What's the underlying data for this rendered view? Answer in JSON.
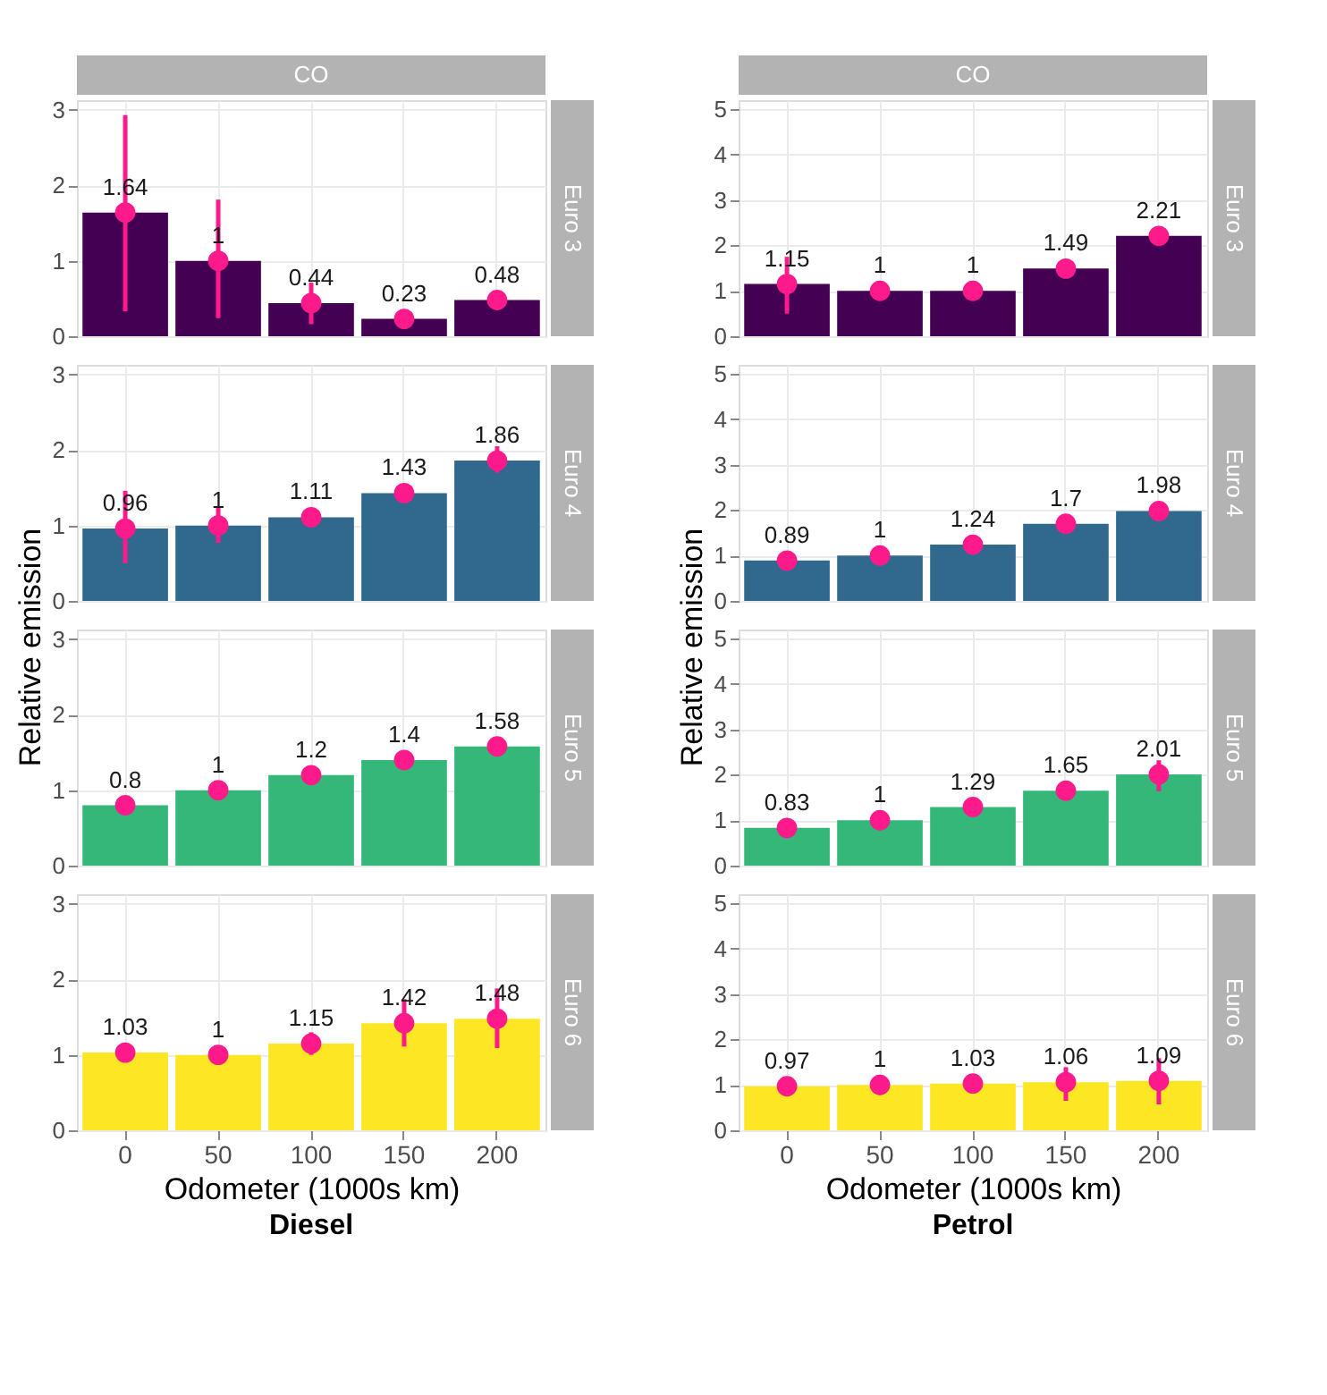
{
  "chart_data": [
    {
      "type": "bar",
      "title": "CO",
      "annotations": [
        "Euro 3"
      ],
      "categories": [
        "0",
        "50",
        "100",
        "150",
        "200"
      ],
      "ylim": [
        0,
        3.13
      ],
      "yticks": [
        0,
        1,
        2,
        3
      ],
      "grid": true,
      "tick_labels": "y",
      "series": [
        {
          "color": "#440154",
          "values": [
            1.64,
            1,
            0.44,
            0.23,
            0.48
          ]
        },
        {
          "type": "scatter",
          "color": "#ff1a8c",
          "values": [
            1.64,
            1,
            0.44,
            0.23,
            0.48
          ],
          "value_labels": [
            "1.64",
            "1",
            "0.44",
            "0.23",
            "0.48"
          ],
          "errors": [
            [
              0.33,
              2.93
            ],
            [
              0.24,
              1.81
            ],
            [
              0.16,
              0.71
            ],
            null,
            null
          ]
        }
      ]
    },
    {
      "type": "bar",
      "ylabel": "Relative emission",
      "annotations": [
        "Euro 4"
      ],
      "categories": [
        "0",
        "50",
        "100",
        "150",
        "200"
      ],
      "ylim": [
        0,
        3.13
      ],
      "yticks": [
        0,
        1,
        2,
        3
      ],
      "grid": true,
      "tick_labels": "y",
      "series": [
        {
          "color": "#31688e",
          "values": [
            0.96,
            1,
            1.11,
            1.43,
            1.86
          ]
        },
        {
          "type": "scatter",
          "color": "#ff1a8c",
          "values": [
            0.96,
            1,
            1.11,
            1.43,
            1.86
          ],
          "value_labels": [
            "0.96",
            "1",
            "1.11",
            "1.43",
            "1.86"
          ],
          "errors": [
            [
              0.5,
              1.46
            ],
            [
              0.77,
              1.24
            ],
            null,
            null,
            [
              1.7,
              2.05
            ]
          ]
        }
      ]
    },
    {
      "type": "bar",
      "annotations": [
        "Euro 5"
      ],
      "categories": [
        "0",
        "50",
        "100",
        "150",
        "200"
      ],
      "ylim": [
        0,
        3.13
      ],
      "yticks": [
        0,
        1,
        2,
        3
      ],
      "grid": true,
      "tick_labels": "y",
      "series": [
        {
          "color": "#35b779",
          "values": [
            0.8,
            1,
            1.2,
            1.4,
            1.58
          ]
        },
        {
          "type": "scatter",
          "color": "#ff1a8c",
          "values": [
            0.8,
            1,
            1.2,
            1.4,
            1.58
          ],
          "value_labels": [
            "0.8",
            "1",
            "1.2",
            "1.4",
            "1.58"
          ]
        }
      ]
    },
    {
      "type": "bar",
      "xlabel": "Odometer (1000s km)",
      "annotations": [
        "Euro 6",
        "Diesel"
      ],
      "categories": [
        "0",
        "50",
        "100",
        "150",
        "200"
      ],
      "ylim": [
        0,
        3.13
      ],
      "yticks": [
        0,
        1,
        2,
        3
      ],
      "grid": true,
      "series": [
        {
          "color": "#fde725",
          "values": [
            1.03,
            1,
            1.15,
            1.42,
            1.48
          ]
        },
        {
          "type": "scatter",
          "color": "#ff1a8c",
          "values": [
            1.03,
            1,
            1.15,
            1.42,
            1.48
          ],
          "value_labels": [
            "1.03",
            "1",
            "1.15",
            "1.42",
            "1.48"
          ],
          "errors": [
            null,
            null,
            [
              1.0,
              1.3
            ],
            [
              1.11,
              1.74
            ],
            [
              1.09,
              1.88
            ]
          ]
        }
      ]
    },
    {
      "type": "bar",
      "title": "CO",
      "annotations": [
        "Euro 3"
      ],
      "categories": [
        "0",
        "50",
        "100",
        "150",
        "200"
      ],
      "ylim": [
        0,
        5.2
      ],
      "yticks": [
        0,
        1,
        2,
        3,
        4,
        5
      ],
      "grid": true,
      "tick_labels": "y",
      "series": [
        {
          "color": "#440154",
          "values": [
            1.15,
            1,
            1,
            1.49,
            2.21
          ]
        },
        {
          "type": "scatter",
          "color": "#ff1a8c",
          "values": [
            1.15,
            1,
            1,
            1.49,
            2.21
          ],
          "value_labels": [
            "1.15",
            "1",
            "1",
            "1.49",
            "2.21"
          ],
          "errors": [
            [
              0.5,
              1.75
            ],
            null,
            null,
            null,
            null
          ]
        }
      ]
    },
    {
      "type": "bar",
      "ylabel": "Relative emission",
      "annotations": [
        "Euro 4"
      ],
      "categories": [
        "0",
        "50",
        "100",
        "150",
        "200"
      ],
      "ylim": [
        0,
        5.2
      ],
      "yticks": [
        0,
        1,
        2,
        3,
        4,
        5
      ],
      "grid": true,
      "tick_labels": "y",
      "series": [
        {
          "color": "#31688e",
          "values": [
            0.89,
            1,
            1.24,
            1.7,
            1.98
          ]
        },
        {
          "type": "scatter",
          "color": "#ff1a8c",
          "values": [
            0.89,
            1,
            1.24,
            1.7,
            1.98
          ],
          "value_labels": [
            "0.89",
            "1",
            "1.24",
            "1.7",
            "1.98"
          ]
        }
      ]
    },
    {
      "type": "bar",
      "annotations": [
        "Euro 5"
      ],
      "categories": [
        "0",
        "50",
        "100",
        "150",
        "200"
      ],
      "ylim": [
        0,
        5.2
      ],
      "yticks": [
        0,
        1,
        2,
        3,
        4,
        5
      ],
      "grid": true,
      "tick_labels": "y",
      "series": [
        {
          "color": "#35b779",
          "values": [
            0.83,
            1,
            1.29,
            1.65,
            2.01
          ]
        },
        {
          "type": "scatter",
          "color": "#ff1a8c",
          "values": [
            0.83,
            1,
            1.29,
            1.65,
            2.01
          ],
          "value_labels": [
            "0.83",
            "1",
            "1.29",
            "1.65",
            "2.01"
          ],
          "errors": [
            null,
            null,
            null,
            null,
            [
              1.64,
              2.32
            ]
          ]
        }
      ]
    },
    {
      "type": "bar",
      "xlabel": "Odometer (1000s km)",
      "annotations": [
        "Euro 6",
        "Petrol"
      ],
      "categories": [
        "0",
        "50",
        "100",
        "150",
        "200"
      ],
      "ylim": [
        0,
        5.2
      ],
      "yticks": [
        0,
        1,
        2,
        3,
        4,
        5
      ],
      "grid": true,
      "series": [
        {
          "color": "#fde725",
          "values": [
            0.97,
            1,
            1.03,
            1.06,
            1.09
          ]
        },
        {
          "type": "scatter",
          "color": "#ff1a8c",
          "values": [
            0.97,
            1,
            1.03,
            1.06,
            1.09
          ],
          "value_labels": [
            "0.97",
            "1",
            "1.03",
            "1.06",
            "1.09"
          ],
          "errors": [
            null,
            null,
            null,
            [
              0.65,
              1.39
            ],
            [
              0.57,
              1.59
            ]
          ]
        }
      ]
    }
  ]
}
